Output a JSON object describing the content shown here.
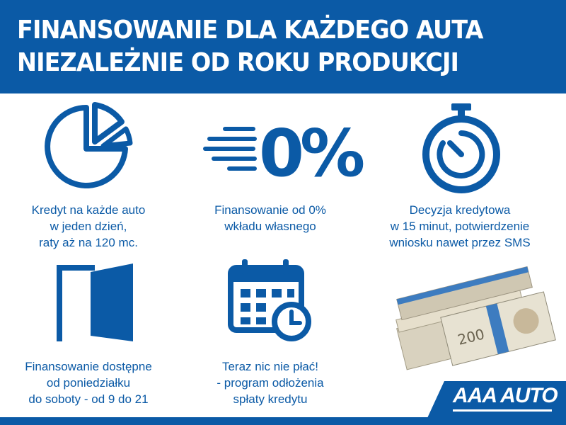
{
  "header": {
    "line1": "FINANSOWANIE DLA KAŻDEGO AUTA",
    "line2": "NIEZALEŻNIE OD ROKU PRODUKCJI"
  },
  "features": [
    {
      "icon": "pie-chart-icon",
      "lines": [
        "Kredyt na każde auto",
        "w jeden dzień,",
        "raty aż na 120 mc."
      ]
    },
    {
      "icon": "zero-percent-icon",
      "icon_text": "0%",
      "lines": [
        "Finansowanie od 0%",
        "wkładu własnego"
      ]
    },
    {
      "icon": "stopwatch-icon",
      "lines": [
        "Decyzja kredytowa",
        "w 15 minut, potwierdzenie",
        "wniosku nawet przez SMS"
      ]
    },
    {
      "icon": "open-door-icon",
      "lines": [
        "Finansowanie dostępne",
        "od poniedziałku",
        "do soboty - od 9 do 21"
      ]
    },
    {
      "icon": "calendar-clock-icon",
      "lines": [
        "Teraz nic nie płać!",
        "- program odłożenia",
        "spłaty kredytu"
      ]
    }
  ],
  "logo": {
    "text": "AAA AUTO"
  },
  "colors": {
    "brand_blue": "#0b5aa6",
    "background": "#ffffff"
  }
}
